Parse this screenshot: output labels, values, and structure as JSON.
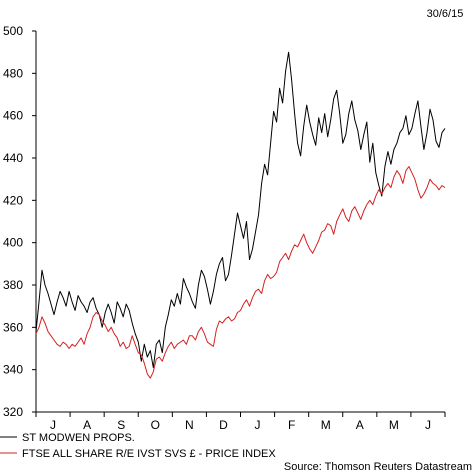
{
  "date_label": "30/6/15",
  "source": "Source: Thomson Reuters Datastream",
  "colors": {
    "series_1": "#000000",
    "series_2": "#d62020",
    "axis": "#000000"
  },
  "chart_data": {
    "type": "line",
    "xlabel": "",
    "ylabel": "",
    "ylim": [
      320,
      500
    ],
    "yticks": [
      320,
      340,
      360,
      380,
      400,
      420,
      440,
      460,
      480,
      500
    ],
    "x_tick_labels": [
      "J",
      "A",
      "S",
      "O",
      "N",
      "D",
      "J",
      "F",
      "M",
      "A",
      "M",
      "J"
    ],
    "grid": false,
    "legend_position": "bottom-left",
    "x": [
      "Jul 14",
      "Aug 14",
      "Sep 14",
      "Oct 14",
      "Nov 14",
      "Dec 14",
      "Jan 15",
      "Feb 15",
      "Mar 15",
      "Apr 15",
      "May 15",
      "Jun 15",
      "30/6/15"
    ],
    "series": [
      {
        "name": "ST MODWEN PROPS.",
        "color": "#000000",
        "values": [
          360,
          376,
          370,
          343,
          378,
          390,
          387,
          468,
          460,
          442,
          452,
          457,
          454
        ],
        "detail_values": [
          358,
          372,
          387,
          380,
          376,
          371,
          366,
          372,
          377,
          374,
          370,
          377,
          372,
          368,
          375,
          372,
          370,
          367,
          372,
          374,
          369,
          366,
          360,
          367,
          371,
          367,
          362,
          372,
          369,
          365,
          371,
          368,
          362,
          357,
          353,
          344,
          352,
          346,
          349,
          341,
          352,
          354,
          348,
          360,
          366,
          373,
          370,
          376,
          371,
          383,
          379,
          376,
          372,
          369,
          380,
          387,
          384,
          378,
          371,
          377,
          385,
          390,
          393,
          382,
          385,
          394,
          404,
          414,
          408,
          402,
          410,
          392,
          397,
          405,
          413,
          428,
          437,
          432,
          447,
          462,
          457,
          473,
          466,
          481,
          490,
          477,
          461,
          447,
          441,
          455,
          465,
          457,
          451,
          446,
          459,
          452,
          461,
          450,
          458,
          468,
          472,
          461,
          447,
          451,
          461,
          467,
          458,
          453,
          444,
          451,
          457,
          438,
          447,
          433,
          427,
          422,
          436,
          443,
          437,
          444,
          447,
          452,
          454,
          460,
          451,
          454,
          461,
          467,
          455,
          444,
          452,
          463,
          458,
          448,
          445,
          452,
          454
        ]
      },
      {
        "name": "FTSE ALL SHARE R/E IVST SVS £ - PRICE INDEX",
        "color": "#d62020",
        "values": [
          358,
          354,
          366,
          338,
          355,
          352,
          368,
          382,
          400,
          412,
          434,
          425,
          426
        ],
        "detail_values": [
          357,
          360,
          365,
          362,
          358,
          356,
          354,
          352,
          351,
          353,
          352,
          350,
          352,
          351,
          353,
          355,
          352,
          357,
          360,
          365,
          367,
          366,
          363,
          361,
          358,
          360,
          357,
          355,
          351,
          353,
          350,
          351,
          356,
          352,
          348,
          347,
          343,
          338,
          336,
          339,
          345,
          346,
          344,
          348,
          351,
          353,
          350,
          352,
          353,
          354,
          352,
          356,
          356,
          354,
          358,
          360,
          357,
          353,
          352,
          351,
          359,
          363,
          362,
          364,
          365,
          363,
          364,
          367,
          368,
          371,
          373,
          370,
          374,
          377,
          378,
          376,
          382,
          385,
          383,
          384,
          386,
          391,
          393,
          395,
          392,
          396,
          399,
          398,
          401,
          404,
          400,
          397,
          395,
          398,
          401,
          405,
          406,
          409,
          408,
          404,
          410,
          413,
          416,
          412,
          410,
          415,
          417,
          414,
          411,
          415,
          418,
          420,
          418,
          422,
          425,
          423,
          426,
          428,
          426,
          431,
          434,
          432,
          428,
          434,
          436,
          433,
          430,
          425,
          421,
          423,
          426,
          430,
          428,
          427,
          425,
          427,
          426
        ]
      }
    ]
  }
}
